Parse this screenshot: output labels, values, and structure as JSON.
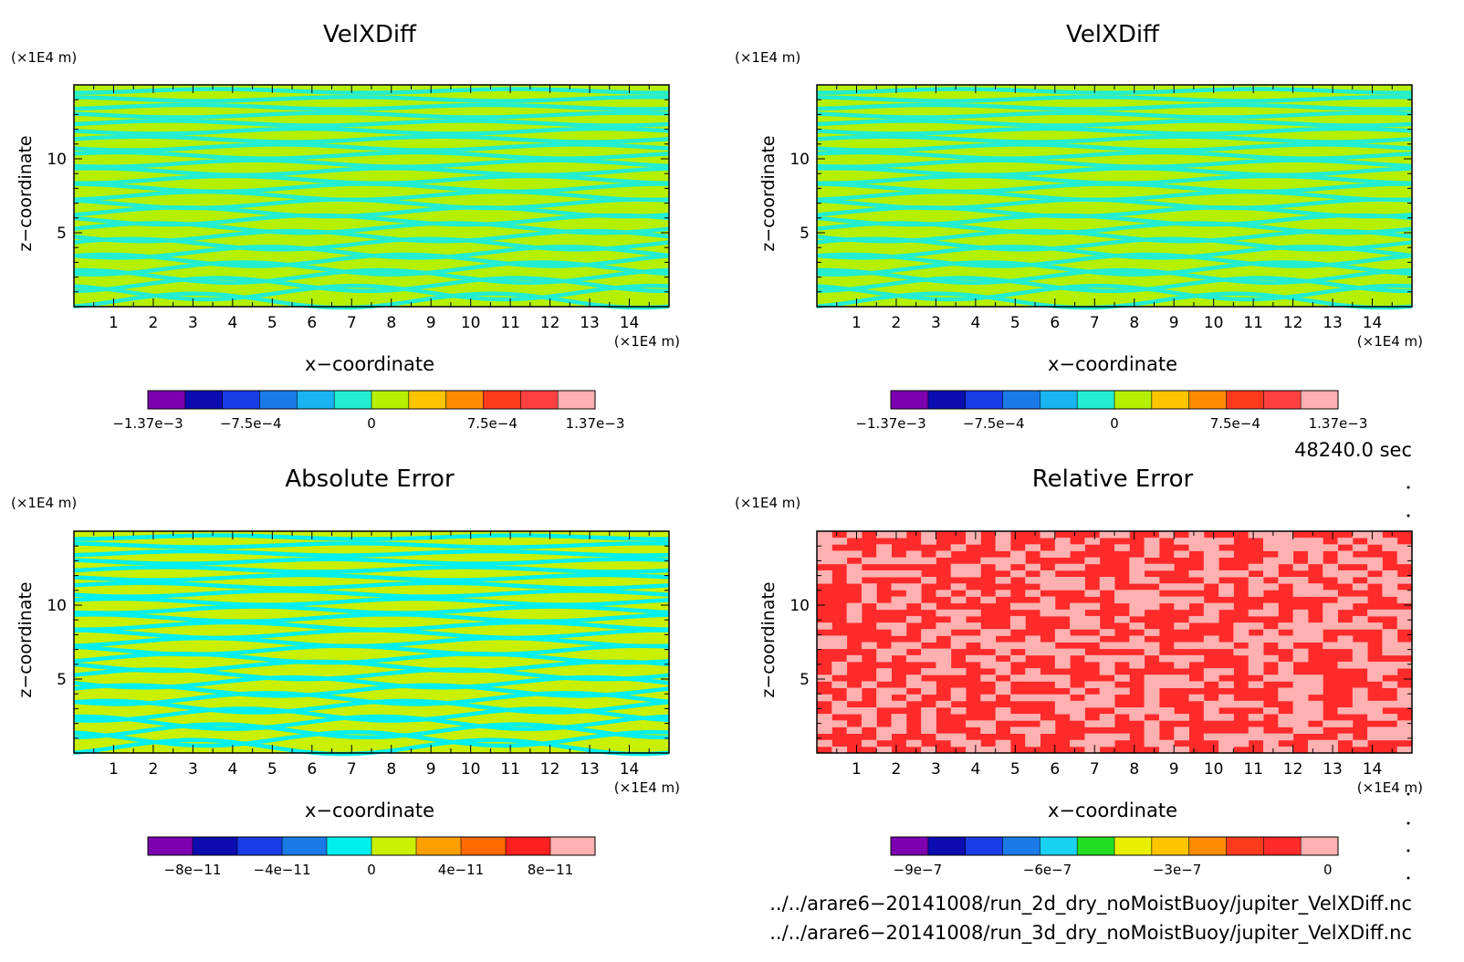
{
  "chart_data": [
    {
      "type": "heatmap",
      "title": "VelXDiff",
      "xlabel": "x−coordinate",
      "ylabel": "z−coordinate",
      "x_unit": "(×1E4 m)",
      "y_unit": "(×1E4 m)",
      "xlim": [
        0,
        15
      ],
      "ylim": [
        0,
        15
      ],
      "x_ticks": [
        "1",
        "2",
        "3",
        "4",
        "5",
        "6",
        "7",
        "8",
        "9",
        "10",
        "11",
        "12",
        "13",
        "14"
      ],
      "y_ticks": [
        "5",
        "10"
      ],
      "field_pattern": "banded",
      "field_colors": [
        "#b4f000",
        "#22eed2"
      ],
      "colorbar": {
        "colors": [
          "#7d00b0",
          "#0c0cb0",
          "#1a3de8",
          "#1a7ae8",
          "#19b4f2",
          "#22eed2",
          "#b4f000",
          "#ffc400",
          "#ff8c00",
          "#ff3b1e",
          "#ff4040",
          "#ffb0b0"
        ],
        "labels": [
          "−1.37e−3",
          "−7.5e−4",
          "0",
          "7.5e−4",
          "1.37e−3"
        ],
        "label_positions": [
          0,
          0.23,
          0.5,
          0.77,
          1.0
        ]
      }
    },
    {
      "type": "heatmap",
      "title": "VelXDiff",
      "xlabel": "x−coordinate",
      "ylabel": "z−coordinate",
      "x_unit": "(×1E4 m)",
      "y_unit": "(×1E4 m)",
      "xlim": [
        0,
        15
      ],
      "ylim": [
        0,
        15
      ],
      "x_ticks": [
        "1",
        "2",
        "3",
        "4",
        "5",
        "6",
        "7",
        "8",
        "9",
        "10",
        "11",
        "12",
        "13",
        "14"
      ],
      "y_ticks": [
        "5",
        "10"
      ],
      "field_pattern": "banded",
      "field_colors": [
        "#b4f000",
        "#22eed2"
      ],
      "colorbar": {
        "colors": [
          "#7d00b0",
          "#0c0cb0",
          "#1a3de8",
          "#1a7ae8",
          "#19b4f2",
          "#22eed2",
          "#b4f000",
          "#ffc400",
          "#ff8c00",
          "#ff3b1e",
          "#ff4040",
          "#ffb0b0"
        ],
        "labels": [
          "−1.37e−3",
          "−7.5e−4",
          "0",
          "7.5e−4",
          "1.37e−3"
        ],
        "label_positions": [
          0,
          0.23,
          0.5,
          0.77,
          1.0
        ]
      }
    },
    {
      "type": "heatmap",
      "title": "Absolute Error",
      "xlabel": "x−coordinate",
      "ylabel": "z−coordinate",
      "x_unit": "(×1E4 m)",
      "y_unit": "(×1E4 m)",
      "xlim": [
        0,
        15
      ],
      "ylim": [
        0,
        15
      ],
      "x_ticks": [
        "1",
        "2",
        "3",
        "4",
        "5",
        "6",
        "7",
        "8",
        "9",
        "10",
        "11",
        "12",
        "13",
        "14"
      ],
      "y_ticks": [
        "5",
        "10"
      ],
      "field_pattern": "banded",
      "field_colors": [
        "#c8f000",
        "#00f0f0"
      ],
      "colorbar": {
        "colors": [
          "#7d00b0",
          "#0c0cb0",
          "#1a3de8",
          "#1a7ae8",
          "#00f0f0",
          "#c8f000",
          "#ffa000",
          "#ff6a00",
          "#ff2020",
          "#ffb0b0"
        ],
        "labels": [
          "−8e−11",
          "−4e−11",
          "0",
          "4e−11",
          "8e−11"
        ],
        "label_positions": [
          0.1,
          0.3,
          0.5,
          0.7,
          0.9
        ]
      }
    },
    {
      "type": "heatmap",
      "title": "Relative Error",
      "xlabel": "x−coordinate",
      "ylabel": "z−coordinate",
      "x_unit": "(×1E4 m)",
      "y_unit": "(×1E4 m)",
      "xlim": [
        0,
        15
      ],
      "ylim": [
        0,
        15
      ],
      "x_ticks": [
        "1",
        "2",
        "3",
        "4",
        "5",
        "6",
        "7",
        "8",
        "9",
        "10",
        "11",
        "12",
        "13",
        "14"
      ],
      "y_ticks": [
        "5",
        "10"
      ],
      "field_pattern": "blocky",
      "field_colors": [
        "#ff2a2a",
        "#ffb0b0"
      ],
      "colorbar": {
        "colors": [
          "#7d00b0",
          "#0c0cb0",
          "#1a3de8",
          "#1a7ae8",
          "#19d2f2",
          "#22dd22",
          "#e8f000",
          "#ffc400",
          "#ff8c00",
          "#ff3b1e",
          "#ff2a2a",
          "#ffb0b0"
        ],
        "labels": [
          "−9e−7",
          "−6e−7",
          "−3e−7",
          "0"
        ],
        "label_positions": [
          0.06,
          0.35,
          0.64,
          0.977
        ]
      }
    }
  ],
  "annotations": {
    "time": "48240.0 sec",
    "file_2d": "../../arare6−20141008/run_2d_dry_noMoistBuoy/jupiter_VelXDiff.nc",
    "file_3d": "../../arare6−20141008/run_3d_dry_noMoistBuoy/jupiter_VelXDiff.nc"
  }
}
